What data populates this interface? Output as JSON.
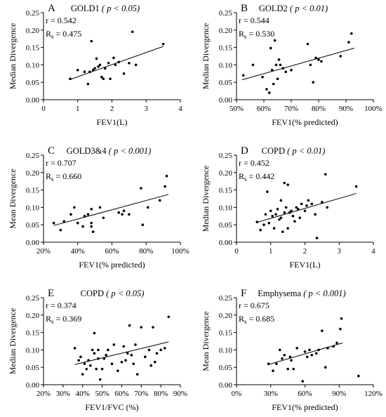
{
  "chart_data": [
    {
      "type": "scatter",
      "panel": "A",
      "title": "GOLD1",
      "p_label": "p < 0.05",
      "xlabel": "FEV1(L)",
      "ylabel": "Median Divergence",
      "xlim": [
        0,
        4
      ],
      "ylim": [
        0,
        0.25
      ],
      "xticks": [
        "0",
        "1",
        "2",
        "3",
        "4"
      ],
      "yticks": [
        "0.00",
        "0.05",
        "0.10",
        "0.15",
        "0.20",
        "0.25"
      ],
      "stats": {
        "r_label": "r = 0.542",
        "rs_prefix": "R",
        "rs_sub": "s",
        "rs_value": " = 0.475"
      },
      "trend": {
        "x": [
          0.75,
          3.5
        ],
        "y": [
          0.057,
          0.153
        ]
      },
      "points": {
        "x": [
          0.78,
          1.0,
          1.2,
          1.3,
          1.35,
          1.4,
          1.45,
          1.5,
          1.55,
          1.6,
          1.65,
          1.7,
          1.75,
          1.8,
          1.9,
          1.95,
          2.05,
          2.1,
          2.2,
          2.35,
          2.5,
          2.6,
          2.7,
          3.5
        ],
        "y": [
          0.06,
          0.085,
          0.08,
          0.045,
          0.08,
          0.168,
          0.085,
          0.09,
          0.118,
          0.095,
          0.1,
          0.065,
          0.06,
          0.09,
          0.105,
          0.06,
          0.12,
          0.1,
          0.108,
          0.075,
          0.105,
          0.195,
          0.1,
          0.16
        ]
      }
    },
    {
      "type": "scatter",
      "panel": "B",
      "title": "GOLD2",
      "p_label": "p < 0.01",
      "xlabel": "FEV1(% predicted)",
      "ylabel": "Median Divergence",
      "xlim": [
        50,
        100
      ],
      "ylim": [
        0,
        0.25
      ],
      "xticks": [
        "50%",
        "60%",
        "70%",
        "80%",
        "90%",
        "100%"
      ],
      "yticks": [
        "0.00",
        "0.05",
        "0.10",
        "0.15",
        "0.20",
        "0.25"
      ],
      "stats": {
        "r_label": "r = 0.544",
        "rs_prefix": "R",
        "rs_sub": "s",
        "rs_value": " = 0.530"
      },
      "trend": {
        "x": [
          52,
          93
        ],
        "y": [
          0.057,
          0.148
        ]
      },
      "points": {
        "x": [
          52.5,
          56,
          59.5,
          61,
          62,
          62.5,
          63,
          63.5,
          64,
          64.5,
          65,
          65.5,
          66,
          67,
          68,
          70,
          76,
          77,
          78,
          79,
          80,
          81,
          88,
          91,
          92
        ],
        "y": [
          0.07,
          0.1,
          0.065,
          0.03,
          0.02,
          0.148,
          0.085,
          0.045,
          0.17,
          0.1,
          0.06,
          0.115,
          0.1,
          0.09,
          0.08,
          0.085,
          0.16,
          0.1,
          0.05,
          0.12,
          0.115,
          0.11,
          0.125,
          0.165,
          0.19
        ]
      }
    },
    {
      "type": "scatter",
      "panel": "C",
      "title": "GOLD3&4",
      "p_label": "p < 0.001",
      "xlabel": "FEV1(% predicted)",
      "ylabel": "Mean Divergence",
      "xlim": [
        20,
        100
      ],
      "ylim": [
        0,
        0.25
      ],
      "xticks": [
        "20%",
        "40%",
        "60%",
        "80%",
        "100%"
      ],
      "yticks": [
        "0.00",
        "0.05",
        "0.10",
        "0.15",
        "0.20",
        "0.25"
      ],
      "stats": {
        "r_label": "r = 0.707",
        "rs_prefix": "R",
        "rs_sub": "s",
        "rs_value": " = 0.660"
      },
      "trend": {
        "x": [
          26,
          93
        ],
        "y": [
          0.048,
          0.137
        ]
      },
      "points": {
        "x": [
          26,
          30,
          32,
          36,
          38,
          40,
          43,
          44,
          46,
          48,
          48,
          48,
          49,
          53,
          55,
          64,
          66,
          67,
          70,
          77,
          78,
          81,
          88,
          91,
          92
        ],
        "y": [
          0.055,
          0.035,
          0.06,
          0.08,
          0.1,
          0.055,
          0.045,
          0.075,
          0.08,
          0.045,
          0.055,
          0.095,
          0.03,
          0.1,
          0.07,
          0.085,
          0.08,
          0.09,
          0.08,
          0.155,
          0.05,
          0.1,
          0.12,
          0.16,
          0.19
        ]
      }
    },
    {
      "type": "scatter",
      "panel": "D",
      "title": "COPD",
      "p_label": "p < 0.01",
      "xlabel": "FEV1(L)",
      "ylabel": "Median Divergence",
      "xlim": [
        0,
        4
      ],
      "ylim": [
        0,
        0.25
      ],
      "xticks": [
        "0",
        "1",
        "2",
        "3",
        "4"
      ],
      "yticks": [
        "0.00",
        "0.05",
        "0.10",
        "0.15",
        "0.20",
        "0.25"
      ],
      "stats": {
        "r_label": "r = 0.452",
        "rs_prefix": "R",
        "rs_sub": "s",
        "rs_value": " = 0.442"
      },
      "trend": {
        "x": [
          0.6,
          3.5
        ],
        "y": [
          0.057,
          0.14
        ]
      },
      "points": {
        "x": [
          0.6,
          0.7,
          0.8,
          0.85,
          0.9,
          0.95,
          1.0,
          1.05,
          1.1,
          1.15,
          1.2,
          1.25,
          1.3,
          1.3,
          1.35,
          1.4,
          1.4,
          1.45,
          1.5,
          1.5,
          1.55,
          1.6,
          1.65,
          1.7,
          1.75,
          1.8,
          1.85,
          1.9,
          2.0,
          2.05,
          2.1,
          2.2,
          2.3,
          2.35,
          2.5,
          2.6,
          2.65,
          3.5
        ],
        "y": [
          0.058,
          0.035,
          0.05,
          0.08,
          0.145,
          0.055,
          0.09,
          0.075,
          0.04,
          0.08,
          0.095,
          0.065,
          0.12,
          0.07,
          0.03,
          0.17,
          0.085,
          0.1,
          0.04,
          0.165,
          0.085,
          0.09,
          0.075,
          0.06,
          0.1,
          0.095,
          0.07,
          0.11,
          0.09,
          0.105,
          0.12,
          0.11,
          0.08,
          0.012,
          0.115,
          0.195,
          0.1,
          0.16
        ]
      }
    },
    {
      "type": "scatter",
      "panel": "E",
      "title": "COPD",
      "p_label": "p < 0.05",
      "xlabel": "FEV1/FVC (%)",
      "ylabel": "Median Divergence",
      "xlim": [
        20,
        90
      ],
      "ylim": [
        0,
        0.25
      ],
      "xticks": [
        "20%",
        "30%",
        "40%",
        "50%",
        "60%",
        "70%",
        "80%",
        "90%"
      ],
      "yticks": [
        "0.00",
        "0.05",
        "0.10",
        "0.15",
        "0.20",
        "0.25"
      ],
      "stats": {
        "r_label": "r = 0.374",
        "rs_prefix": "R",
        "rs_sub": "s",
        "rs_value": " = 0.369"
      },
      "trend": {
        "x": [
          36,
          84
        ],
        "y": [
          0.058,
          0.123
        ]
      },
      "points": {
        "x": [
          36,
          38,
          39,
          40,
          41,
          42,
          43,
          44,
          45,
          46,
          46,
          47,
          48,
          48,
          49,
          50,
          51,
          52,
          53,
          55,
          56,
          58,
          60,
          61,
          62,
          63,
          64,
          65,
          66,
          67,
          68,
          70,
          72,
          74,
          75,
          76,
          77,
          78,
          80,
          82,
          84
        ],
        "y": [
          0.105,
          0.07,
          0.08,
          0.03,
          0.06,
          0.045,
          0.07,
          0.055,
          0.1,
          0.148,
          0.09,
          0.045,
          0.075,
          0.1,
          0.015,
          0.045,
          0.075,
          0.085,
          0.1,
          0.06,
          0.115,
          0.04,
          0.065,
          0.11,
          0.07,
          0.09,
          0.17,
          0.085,
          0.06,
          0.115,
          0.03,
          0.165,
          0.08,
          0.1,
          0.055,
          0.165,
          0.065,
          0.09,
          0.1,
          0.105,
          0.195
        ]
      }
    },
    {
      "type": "scatter",
      "panel": "F",
      "title": "Emphysema",
      "p_label": "p < 0.001",
      "xlabel": "FEV1(% predicted)",
      "ylabel": "Mean Divergence",
      "xlim": [
        0,
        120
      ],
      "ylim": [
        0,
        0.25
      ],
      "xticks": [
        "0%",
        "30%",
        "60%",
        "90%",
        "120%"
      ],
      "yticks": [
        "0.00",
        "0.05",
        "0.10",
        "0.15",
        "0.20",
        "0.25"
      ],
      "stats": {
        "r_label": "r = 0.675",
        "rs_prefix": "R",
        "rs_sub": "s",
        "rs_value": " = 0.685"
      },
      "trend": {
        "x": [
          28,
          93
        ],
        "y": [
          0.058,
          0.12
        ]
      },
      "points": {
        "x": [
          28,
          32,
          35,
          38,
          40,
          42,
          45,
          47,
          48,
          50,
          53,
          58,
          60,
          62,
          64,
          66,
          70,
          72,
          75,
          78,
          80,
          85,
          88,
          91,
          92,
          107
        ],
        "y": [
          0.06,
          0.04,
          0.06,
          0.1,
          0.075,
          0.085,
          0.045,
          0.08,
          0.07,
          0.045,
          0.105,
          0.01,
          0.095,
          0.08,
          0.1,
          0.085,
          0.09,
          0.1,
          0.155,
          0.05,
          0.105,
          0.11,
          0.12,
          0.16,
          0.19,
          0.025
        ]
      }
    }
  ]
}
